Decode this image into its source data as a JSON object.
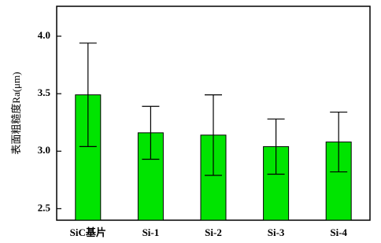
{
  "chart_data": {
    "type": "bar",
    "y_label": "表面粗糙度Ra(μm)",
    "categories": [
      "SiC基片",
      "Si-1",
      "Si-2",
      "Si-3",
      "Si-4"
    ],
    "values": [
      3.49,
      3.16,
      3.14,
      3.04,
      3.08
    ],
    "errors": [
      0.45,
      0.23,
      0.35,
      0.24,
      0.26
    ],
    "color": "#00e400",
    "ylim": [
      2.4,
      4.26
    ],
    "yticks": [
      {
        "value": 2.5,
        "label": "2.5"
      },
      {
        "value": 3,
        "label": "3.0"
      },
      {
        "value": 3.5,
        "label": "3.5"
      },
      {
        "value": 4,
        "label": "4.0"
      }
    ]
  }
}
